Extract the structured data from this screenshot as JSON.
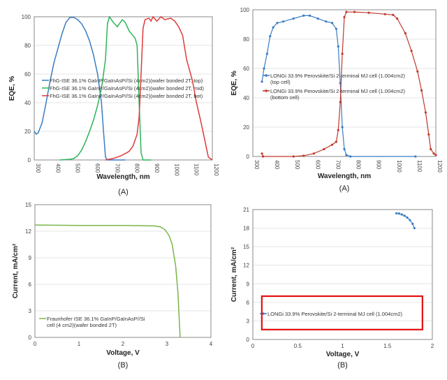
{
  "chart_data": [
    {
      "type": "line",
      "caption": "(A)",
      "xlabel": "Wavelength, nm",
      "ylabel": "EQE, %",
      "xlim": [
        300,
        1200
      ],
      "ylim": [
        0,
        100
      ],
      "xticks": [
        300,
        400,
        500,
        600,
        700,
        800,
        900,
        1000,
        1100,
        1200
      ],
      "yticks": [
        0,
        20,
        40,
        60,
        80,
        100
      ],
      "grid": true,
      "legend_placement": "center-left",
      "series": [
        {
          "name": "FhG-ISE 36.1% GaInP/GaInAsP//Si (4cm2)(wafer bonded 2T, top)",
          "color": "#3a7cc3",
          "x": [
            300,
            310,
            320,
            340,
            360,
            380,
            400,
            420,
            440,
            460,
            480,
            500,
            520,
            540,
            560,
            580,
            600,
            620,
            640,
            650,
            660,
            670,
            760
          ],
          "y": [
            20,
            18,
            19,
            26,
            40,
            55,
            68,
            78,
            88,
            96,
            99.5,
            99.5,
            98,
            95,
            90,
            83,
            73,
            60,
            40,
            20,
            2,
            0,
            0
          ]
        },
        {
          "name": "FhG-ISE 36.1% GaInP/GaInAsP//Si (4cm2)(wafer bonded 2T, mid)",
          "color": "#2db45a",
          "x": [
            430,
            480,
            500,
            520,
            540,
            560,
            580,
            600,
            620,
            640,
            660,
            670,
            680,
            700,
            720,
            745,
            760,
            780,
            810,
            820,
            830,
            840,
            850,
            890
          ],
          "y": [
            0,
            0.5,
            1,
            3,
            7,
            13,
            20,
            28,
            38,
            50,
            70,
            95,
            100,
            96,
            93,
            98,
            96,
            90,
            85,
            80,
            40,
            5,
            0,
            0
          ]
        },
        {
          "name": "FhG-ISE 36.1% GaInP/GaInAsP//Si (4cm2)(wafer bonded 2T, bot)",
          "color": "#e03a3a",
          "x": [
            660,
            700,
            740,
            780,
            800,
            820,
            830,
            840,
            850,
            860,
            880,
            890,
            900,
            920,
            940,
            960,
            990,
            1010,
            1030,
            1050,
            1070,
            1100,
            1120,
            1140,
            1160,
            1180,
            1200
          ],
          "y": [
            0,
            1,
            3,
            6,
            10,
            18,
            30,
            60,
            92,
            98,
            99,
            97,
            100,
            97,
            100,
            98,
            99,
            97,
            93,
            87,
            70,
            55,
            40,
            28,
            15,
            2,
            0
          ]
        }
      ]
    },
    {
      "type": "line",
      "caption": "(A)",
      "xlabel": "Wavelength, nm",
      "ylabel": "EQE, %",
      "xlim": [
        300,
        1200
      ],
      "ylim": [
        0,
        100
      ],
      "xticks": [
        300,
        400,
        500,
        600,
        700,
        800,
        900,
        1000,
        1100,
        1200
      ],
      "yticks": [
        0,
        20,
        40,
        60,
        80,
        100
      ],
      "grid": true,
      "legend_placement": "center-left",
      "series": [
        {
          "name": "LONGi 33.9% Perovskite/Si 2-terminal MJ cell (1.004cm2)",
          "name2": "(top cell)",
          "color": "#3a7cc3",
          "x": [
            345,
            355,
            370,
            385,
            400,
            420,
            450,
            500,
            550,
            580,
            620,
            660,
            690,
            710,
            720,
            730,
            740,
            750,
            760,
            780,
            1100
          ],
          "y": [
            51,
            60,
            70,
            82,
            88,
            91,
            92,
            94,
            96,
            96,
            94,
            92,
            91,
            87,
            75,
            50,
            20,
            5,
            1,
            0,
            0
          ]
        },
        {
          "name": "LONGi 33.9% Perovskite/Si 2-terminal MJ cell (1.004cm2)",
          "name2": "(bottom cell)",
          "color": "#c0392b",
          "x": [
            345,
            350,
            500,
            550,
            600,
            650,
            690,
            710,
            720,
            730,
            740,
            750,
            760,
            800,
            870,
            950,
            990,
            1010,
            1050,
            1080,
            1110,
            1130,
            1150,
            1165,
            1175,
            1190,
            1200
          ],
          "y": [
            2,
            0,
            0,
            0.5,
            2,
            5,
            8,
            10,
            18,
            37,
            70,
            95,
            98.5,
            98.5,
            98,
            97,
            96.5,
            94,
            84,
            72,
            58,
            45,
            30,
            15,
            5,
            2,
            1
          ]
        }
      ]
    },
    {
      "type": "line",
      "caption": "(B)",
      "xlabel": "Voltage, V",
      "ylabel": "Current, mA/cm²",
      "xlim": [
        0,
        4
      ],
      "ylim": [
        0,
        15
      ],
      "xticks": [
        0,
        1,
        2,
        3,
        4
      ],
      "yticks": [
        0,
        3,
        6,
        9,
        12,
        15
      ],
      "grid": true,
      "legend_placement": "bottom-left",
      "series": [
        {
          "name": "Fraunhofer ISE 36.1% GaInP/GaInAsP//Si",
          "name2": "cell (4 cm2)(wafer bonded 2T)",
          "color": "#7ab648",
          "x": [
            0,
            1,
            2,
            2.7,
            2.85,
            2.95,
            3.05,
            3.12,
            3.2,
            3.25,
            3.3
          ],
          "y": [
            12.7,
            12.65,
            12.65,
            12.6,
            12.5,
            12.2,
            11.5,
            10.5,
            8,
            5,
            0
          ]
        }
      ]
    },
    {
      "type": "scatter",
      "caption": "(B)",
      "xlabel": "Voltage, V",
      "ylabel": "Current, mA/cm²",
      "xlim": [
        0,
        2
      ],
      "ylim": [
        0,
        21
      ],
      "xticks": [
        0,
        0.5,
        1,
        1.5,
        2
      ],
      "yticks": [
        0,
        3,
        6,
        9,
        12,
        15,
        18,
        21
      ],
      "grid": true,
      "legend_placement": "bottom-left",
      "highlight_box": {
        "x": [
          0.1,
          1.89
        ],
        "y": [
          1.6,
          7
        ],
        "color": "#e01010"
      },
      "series": [
        {
          "name": "LONGi 33.9% Perovskite/Si 2-terminal MJ cell (1.004cm2)",
          "color": "#3a7cc3",
          "x": [
            1.6,
            1.63,
            1.66,
            1.69,
            1.72,
            1.75,
            1.78,
            1.8
          ],
          "y": [
            20.4,
            20.35,
            20.2,
            20,
            19.7,
            19.3,
            18.7,
            18
          ]
        }
      ]
    }
  ]
}
